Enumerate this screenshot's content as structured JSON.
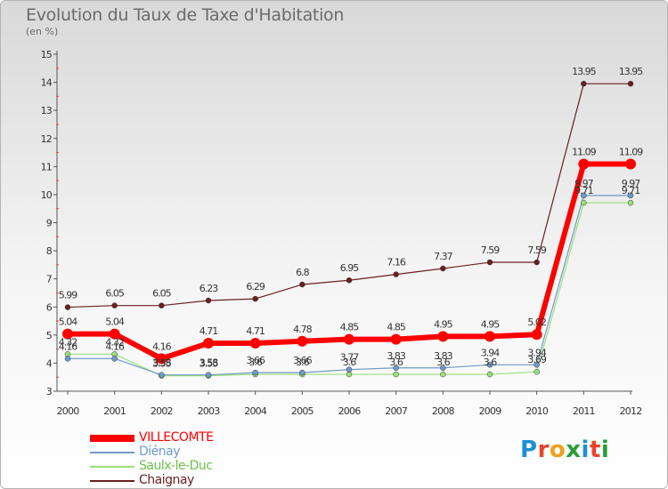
{
  "title": "Evolution du Taux de Taxe d'Habitation",
  "subtitle": "(en %)",
  "chart_data": {
    "type": "line",
    "title": "Evolution du Taux de Taxe d'Habitation",
    "ylabel": "(en %)",
    "xlabel": "",
    "categories": [
      "2000",
      "2001",
      "2002",
      "2003",
      "2004",
      "2005",
      "2006",
      "2007",
      "2008",
      "2009",
      "2010",
      "2011",
      "2012"
    ],
    "ylim": [
      3,
      15
    ],
    "yticks": [
      "3",
      "4",
      "5",
      "6",
      "7",
      "8",
      "9",
      "10",
      "11",
      "12",
      "13",
      "14",
      "15"
    ],
    "grid": false,
    "legend_position": "bottom-left",
    "series": [
      {
        "name": "Chaignay",
        "color": "#6b1f1f",
        "width": 1.2,
        "values": [
          5.99,
          6.05,
          6.05,
          6.23,
          6.29,
          6.8,
          6.95,
          7.16,
          7.37,
          7.59,
          7.59,
          13.95,
          13.95
        ],
        "labels": [
          "5.99",
          "6.05",
          "6.05",
          "6.23",
          "6.29",
          "6.8",
          "6.95",
          "7.16",
          "7.37",
          "7.59",
          "7.59",
          "13.95",
          "13.95"
        ]
      },
      {
        "name": "Saulx-le-Duc",
        "color": "#99e07a",
        "width": 1.2,
        "values": [
          4.32,
          4.32,
          3.55,
          3.55,
          3.6,
          3.6,
          3.6,
          3.6,
          3.6,
          3.6,
          3.69,
          9.71,
          9.71
        ],
        "labels": [
          "4.32",
          "4.32",
          "3.55",
          "3.55",
          "3.6",
          "3.6",
          "3.6",
          "3.6",
          "3.6",
          "3.6",
          "3.69",
          "9.71",
          "9.71"
        ]
      },
      {
        "name": "Diénay",
        "color": "#6f9ac8",
        "width": 1.2,
        "values": [
          4.16,
          4.16,
          3.58,
          3.58,
          3.66,
          3.66,
          3.77,
          3.83,
          3.83,
          3.94,
          3.94,
          9.97,
          9.97
        ],
        "labels": [
          "4.16",
          "4.16",
          "3.58",
          "3.58",
          "3.66",
          "3.66",
          "3.77",
          "3.83",
          "3.83",
          "3.94",
          "3.94",
          "9.97",
          "9.97"
        ]
      },
      {
        "name": "VILLECOMTE",
        "color": "#ff0000",
        "width": 6,
        "values": [
          5.04,
          5.04,
          4.16,
          4.71,
          4.71,
          4.78,
          4.85,
          4.85,
          4.95,
          4.95,
          5.02,
          11.09,
          11.09
        ],
        "labels": [
          "5.04",
          "5.04",
          "4.16",
          "4.71",
          "4.71",
          "4.78",
          "4.85",
          "4.85",
          "4.95",
          "4.95",
          "5.02",
          "11.09",
          "11.09"
        ]
      }
    ]
  },
  "legend": [
    {
      "label": "VILLECOMTE",
      "color": "#ff0000"
    },
    {
      "label": "Diénay",
      "color": "#6f9ac8"
    },
    {
      "label": "Saulx-le-Duc",
      "color": "#99e07a"
    },
    {
      "label": "Chaignay",
      "color": "#6b1f1f"
    }
  ],
  "logo": {
    "text": "Proxiti",
    "colors": [
      "#1e8fd6",
      "#e8452c",
      "#f0a01e",
      "#2a9d3a",
      "#1e8fd6",
      "#e8452c",
      "#2a9d3a"
    ]
  }
}
